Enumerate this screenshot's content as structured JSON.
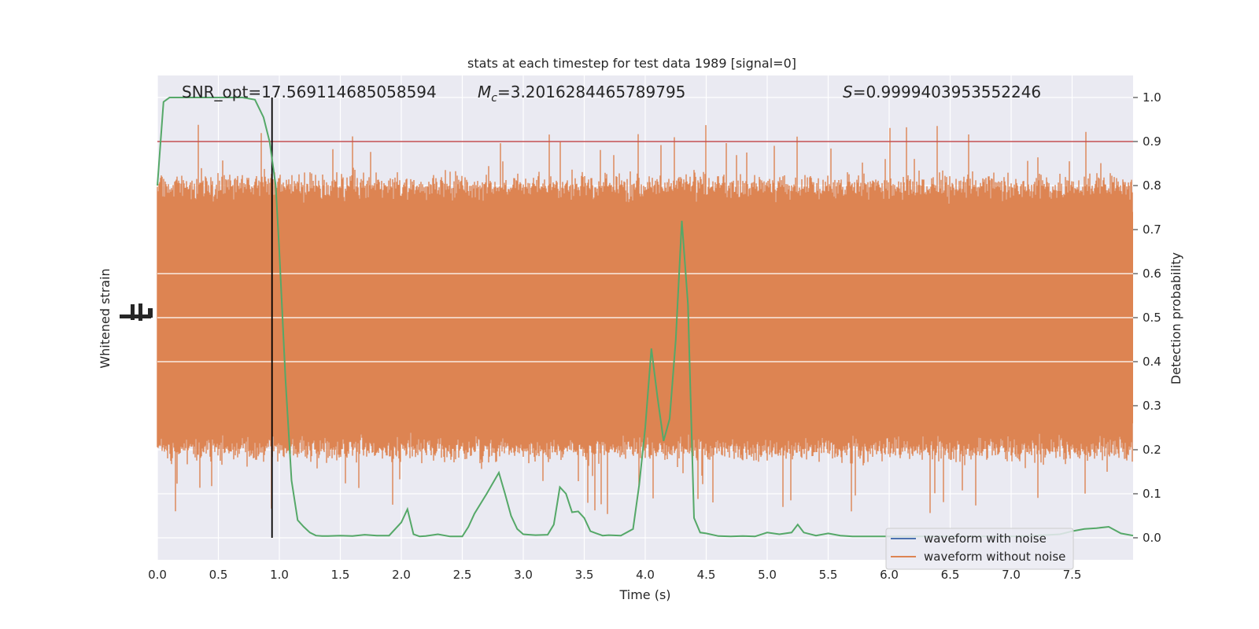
{
  "chart_data": {
    "type": "line",
    "title": "stats at each timestep for test data 1989 [signal=0]",
    "xlabel": "Time (s)",
    "ylabel_left": "Whitened strain",
    "ylabel_right": "Detection probability",
    "xlim": [
      0.0,
      8.0
    ],
    "ylim_right": [
      -0.05,
      1.05
    ],
    "x_ticks": [
      0.0,
      0.5,
      1.0,
      1.5,
      2.0,
      2.5,
      3.0,
      3.5,
      4.0,
      4.5,
      5.0,
      5.5,
      6.0,
      6.5,
      7.0,
      7.5
    ],
    "x_tick_labels": [
      "0.0",
      "0.5",
      "1.0",
      "1.5",
      "2.0",
      "2.5",
      "3.0",
      "3.5",
      "4.0",
      "4.5",
      "5.0",
      "5.5",
      "6.0",
      "6.5",
      "7.0",
      "7.5"
    ],
    "y_right_ticks": [
      0.0,
      0.1,
      0.2,
      0.3,
      0.4,
      0.5,
      0.6,
      0.7,
      0.8,
      0.9,
      1.0
    ],
    "y_right_tick_labels": [
      "0.0",
      "0.1",
      "0.2",
      "0.3",
      "0.4",
      "0.5",
      "0.6",
      "0.7",
      "0.8",
      "0.9",
      "1.0"
    ],
    "grid": true,
    "legend_position": "lower-right",
    "annotations": {
      "snr": "SNR_opt=17.569114685058594",
      "mc_symbol": "M",
      "mc_sub": "c",
      "mc_value": "=3.2016284465789795",
      "s_symbol": "S",
      "s_value": "=0.9999403953552246"
    },
    "threshold": {
      "value": 0.9,
      "color": "#c44e52"
    },
    "vline": {
      "x": 0.94,
      "y_range": [
        0.0,
        1.0
      ],
      "color": "#000000"
    },
    "noise_envelope": {
      "center": 0.5,
      "typical_low": 0.2,
      "typical_high": 0.8,
      "peak_low": 0.0,
      "peak_high": 1.0
    },
    "series": [
      {
        "name": "waveform with noise",
        "color": "#4c72b0",
        "x": [],
        "y": []
      },
      {
        "name": "waveform without noise",
        "color": "#dd8452",
        "x": [],
        "y": []
      },
      {
        "color": "#55a868",
        "x": [
          0.0,
          0.05,
          0.1,
          0.2,
          0.3,
          0.4,
          0.5,
          0.6,
          0.7,
          0.8,
          0.87,
          0.92,
          0.97,
          1.0,
          1.05,
          1.1,
          1.15,
          1.2,
          1.25,
          1.3,
          1.35,
          1.4,
          1.5,
          1.6,
          1.7,
          1.8,
          1.9,
          2.0,
          2.05,
          2.1,
          2.15,
          2.2,
          2.3,
          2.4,
          2.5,
          2.55,
          2.6,
          2.7,
          2.8,
          2.85,
          2.9,
          2.95,
          3.0,
          3.05,
          3.1,
          3.2,
          3.25,
          3.3,
          3.35,
          3.4,
          3.45,
          3.5,
          3.55,
          3.6,
          3.65,
          3.7,
          3.8,
          3.9,
          3.95,
          4.0,
          4.05,
          4.1,
          4.15,
          4.2,
          4.25,
          4.3,
          4.35,
          4.4,
          4.45,
          4.5,
          4.6,
          4.7,
          4.8,
          4.9,
          5.0,
          5.1,
          5.2,
          5.25,
          5.3,
          5.4,
          5.5,
          5.6,
          5.7,
          5.8,
          5.9,
          6.0,
          6.2,
          6.4,
          6.6,
          6.8,
          7.0,
          7.2,
          7.4,
          7.5,
          7.6,
          7.7,
          7.8,
          7.9,
          8.0
        ],
        "y": [
          0.8,
          0.99,
          1.0,
          1.0,
          1.0,
          1.0,
          1.0,
          1.0,
          1.0,
          0.995,
          0.955,
          0.9,
          0.8,
          0.65,
          0.36,
          0.13,
          0.04,
          0.025,
          0.012,
          0.005,
          0.004,
          0.004,
          0.005,
          0.004,
          0.007,
          0.005,
          0.005,
          0.035,
          0.065,
          0.008,
          0.003,
          0.004,
          0.008,
          0.003,
          0.003,
          0.025,
          0.055,
          0.1,
          0.148,
          0.1,
          0.05,
          0.02,
          0.008,
          0.007,
          0.006,
          0.007,
          0.03,
          0.115,
          0.1,
          0.058,
          0.06,
          0.045,
          0.015,
          0.01,
          0.005,
          0.006,
          0.005,
          0.02,
          0.12,
          0.25,
          0.43,
          0.32,
          0.22,
          0.27,
          0.45,
          0.72,
          0.53,
          0.045,
          0.012,
          0.01,
          0.004,
          0.003,
          0.004,
          0.003,
          0.012,
          0.008,
          0.012,
          0.03,
          0.012,
          0.005,
          0.01,
          0.005,
          0.003,
          0.003,
          0.003,
          0.003,
          0.003,
          0.003,
          0.003,
          0.003,
          0.003,
          0.005,
          0.008,
          0.015,
          0.02,
          0.022,
          0.025,
          0.01,
          0.005
        ]
      }
    ]
  }
}
